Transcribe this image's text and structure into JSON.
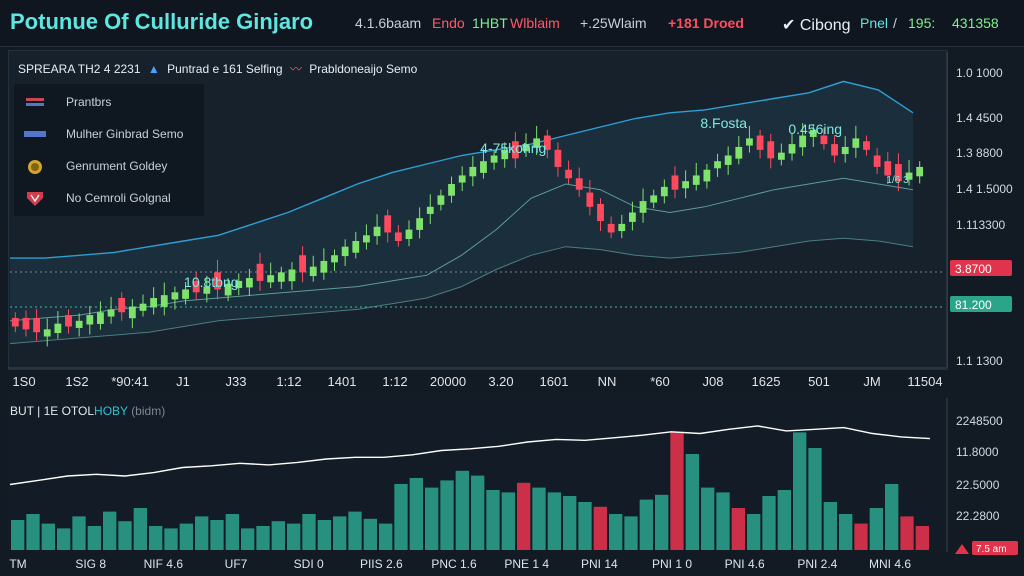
{
  "header": {
    "title": "Potunue Of Culluride Ginjaro",
    "tickers": [
      {
        "label": "4.1.6baam",
        "color": "#c7d0d9"
      },
      {
        "label": "Endo",
        "color": "#ff5a6a"
      },
      {
        "label": "1HBT",
        "color": "#7ff08a"
      },
      {
        "label": "Wlblaim",
        "color": "#ff5a6a"
      },
      {
        "label": "+.25Wlaim",
        "color": "#c7d0d9"
      },
      {
        "label": "+181 Droed",
        "color": "#ff4d5e"
      }
    ],
    "right_brand": "Cibong",
    "right_items": [
      "Pnel",
      "/",
      "195:",
      "431358"
    ]
  },
  "toolbar": {
    "symbol_label": "SPREARA TH2 4 2231",
    "indicator_label": "Puntrad e 161 Selfing",
    "overlay_label": "Prabldoneaijo Semo",
    "up_icon": "triangle-up-icon",
    "down_icon": "pulse-icon"
  },
  "legend": {
    "items": [
      {
        "label": "Prantbrs",
        "icon": "flag-icon",
        "color": "#d84a5a"
      },
      {
        "label": "Mulher Ginbrad Semo",
        "icon": "candle-icon",
        "color": "#5a7ed8"
      },
      {
        "label": "Genrument Goldey",
        "icon": "coin-icon",
        "color": "#e0b030"
      },
      {
        "label": "No Cemroli Golgnal",
        "icon": "shield-icon",
        "color": "#e04050"
      }
    ]
  },
  "colors": {
    "up": "#7fe36b",
    "down": "#ff4a5e",
    "band": "#2f9fd4",
    "volume_up": "#2a9d8a",
    "volume_down": "#e0334c"
  },
  "chart_data": [
    {
      "type": "candlestick",
      "price_labels": [
        "1.0 1000",
        "1.4 4500",
        "1.3 8800",
        "1.4 1.5000",
        "1.113300",
        "1.1 1300"
      ],
      "badges": [
        {
          "label": "3.8700",
          "color": "#e0334c"
        },
        {
          "label": "81.200",
          "color": "#2aa58a"
        }
      ],
      "x_labels": [
        "1S0",
        "1S2",
        "*90:41",
        "J1",
        "J33",
        "1:12",
        "1401",
        "1:12",
        "20000",
        "3.20",
        "1601",
        "NN",
        "*60",
        "J08",
        "1625",
        "501",
        "JM",
        "11504"
      ],
      "annotations": [
        {
          "label": "10.8tbng",
          "x": 0.22
        },
        {
          "label": "4-75kohng",
          "x": 0.55
        },
        {
          "label": "8.Fosta",
          "x": 0.78
        },
        {
          "label": "0.456ing",
          "x": 0.88
        },
        {
          "label": "1/6 3",
          "x": 0.97
        }
      ],
      "band_upper": [
        0.34,
        0.34,
        0.35,
        0.36,
        0.38,
        0.4,
        0.42,
        0.46,
        0.5,
        0.55,
        0.6,
        0.64,
        0.67,
        0.7,
        0.72,
        0.74,
        0.77,
        0.8,
        0.83,
        0.85,
        0.86,
        0.88,
        0.9,
        0.92,
        0.96,
        0.93,
        0.85
      ],
      "band_mid": [
        0.12,
        0.13,
        0.14,
        0.16,
        0.17,
        0.19,
        0.2,
        0.21,
        0.22,
        0.23,
        0.24,
        0.26,
        0.28,
        0.35,
        0.44,
        0.55,
        0.6,
        0.58,
        0.52,
        0.5,
        0.52,
        0.55,
        0.58,
        0.6,
        0.62,
        0.6,
        0.58
      ],
      "band_lower": [
        0.04,
        0.05,
        0.06,
        0.07,
        0.08,
        0.1,
        0.12,
        0.13,
        0.14,
        0.15,
        0.16,
        0.18,
        0.2,
        0.24,
        0.3,
        0.35,
        0.38,
        0.37,
        0.35,
        0.34,
        0.35,
        0.36,
        0.38,
        0.4,
        0.41,
        0.4,
        0.38
      ],
      "candles_close": [
        0.1,
        0.09,
        0.08,
        0.09,
        0.11,
        0.1,
        0.12,
        0.14,
        0.15,
        0.16,
        0.15,
        0.17,
        0.18,
        0.2,
        0.21,
        0.22,
        0.23,
        0.22,
        0.24,
        0.23,
        0.25,
        0.26,
        0.27,
        0.26,
        0.28,
        0.29,
        0.3,
        0.29,
        0.31,
        0.33,
        0.35,
        0.38,
        0.4,
        0.42,
        0.45,
        0.43,
        0.4,
        0.44,
        0.48,
        0.52,
        0.56,
        0.6,
        0.63,
        0.66,
        0.68,
        0.7,
        0.72,
        0.69,
        0.74,
        0.76,
        0.72,
        0.66,
        0.62,
        0.58,
        0.52,
        0.47,
        0.43,
        0.46,
        0.5,
        0.54,
        0.56,
        0.59,
        0.58,
        0.61,
        0.63,
        0.65,
        0.68,
        0.7,
        0.73,
        0.76,
        0.72,
        0.69,
        0.71,
        0.74,
        0.77,
        0.79,
        0.74,
        0.7,
        0.73,
        0.76,
        0.72,
        0.66,
        0.63,
        0.61,
        0.64,
        0.66
      ],
      "candles_dir": [
        "d",
        "d",
        "d",
        "u",
        "u",
        "d",
        "u",
        "u",
        "u",
        "u",
        "d",
        "u",
        "u",
        "u",
        "u",
        "u",
        "u",
        "d",
        "u",
        "d",
        "u",
        "u",
        "u",
        "d",
        "u",
        "u",
        "u",
        "d",
        "u",
        "u",
        "u",
        "u",
        "u",
        "u",
        "u",
        "d",
        "d",
        "u",
        "u",
        "u",
        "u",
        "u",
        "u",
        "u",
        "u",
        "u",
        "u",
        "d",
        "u",
        "u",
        "d",
        "d",
        "d",
        "d",
        "d",
        "d",
        "d",
        "u",
        "u",
        "u",
        "u",
        "u",
        "d",
        "u",
        "u",
        "u",
        "u",
        "u",
        "u",
        "u",
        "d",
        "d",
        "u",
        "u",
        "u",
        "u",
        "d",
        "d",
        "u",
        "u",
        "d",
        "d",
        "d",
        "d",
        "u",
        "u"
      ]
    },
    {
      "type": "bar",
      "title_parts": [
        "BUT | 1E OTOL",
        "HOBY",
        "(bidm)"
      ],
      "y_labels": [
        "2248500",
        "11.8000",
        "22.5000",
        "22.2800"
      ],
      "x_labels": [
        "TM",
        "SIG 8",
        "NIF 4.6",
        "UF7",
        "SDI 0",
        "PIIS 2.6",
        "PNC 1.6",
        "PNE 1 4",
        "PNI 14",
        "PNI 1 0",
        "PNI 4.6",
        "PNI 2.4",
        "MNI 4.6"
      ],
      "badge": {
        "label": "7.5 am",
        "color": "#e0334c"
      },
      "line": [
        0.3,
        0.35,
        0.4,
        0.42,
        0.4,
        0.44,
        0.5,
        0.52,
        0.55,
        0.53,
        0.56,
        0.6,
        0.62,
        0.62,
        0.65,
        0.7,
        0.72,
        0.75,
        0.8,
        0.83,
        0.82,
        0.85,
        0.88,
        0.92,
        0.9,
        0.95,
        0.99,
        0.93,
        0.95,
        0.97,
        0.9,
        0.86,
        0.84
      ],
      "volumes": [
        0.25,
        0.3,
        0.22,
        0.18,
        0.28,
        0.2,
        0.32,
        0.24,
        0.35,
        0.2,
        0.18,
        0.22,
        0.28,
        0.25,
        0.3,
        0.18,
        0.2,
        0.24,
        0.22,
        0.3,
        0.25,
        0.28,
        0.32,
        0.26,
        0.22,
        0.55,
        0.6,
        0.52,
        0.58,
        0.66,
        0.62,
        0.5,
        0.48,
        0.56,
        0.52,
        0.48,
        0.45,
        0.4,
        0.36,
        0.3,
        0.28,
        0.42,
        0.46,
        0.98,
        0.8,
        0.52,
        0.48,
        0.35,
        0.3,
        0.45,
        0.5,
        0.98,
        0.85,
        0.4,
        0.3,
        0.22,
        0.35,
        0.55,
        0.28,
        0.2
      ],
      "volume_dir": [
        "u",
        "u",
        "u",
        "u",
        "u",
        "u",
        "u",
        "u",
        "u",
        "u",
        "u",
        "u",
        "u",
        "u",
        "u",
        "u",
        "u",
        "u",
        "u",
        "u",
        "u",
        "u",
        "u",
        "u",
        "u",
        "u",
        "u",
        "u",
        "u",
        "u",
        "u",
        "u",
        "u",
        "d",
        "u",
        "u",
        "u",
        "u",
        "d",
        "u",
        "u",
        "u",
        "u",
        "d",
        "u",
        "u",
        "u",
        "d",
        "u",
        "u",
        "u",
        "u",
        "u",
        "u",
        "u",
        "d",
        "u",
        "u",
        "d",
        "d"
      ]
    }
  ]
}
